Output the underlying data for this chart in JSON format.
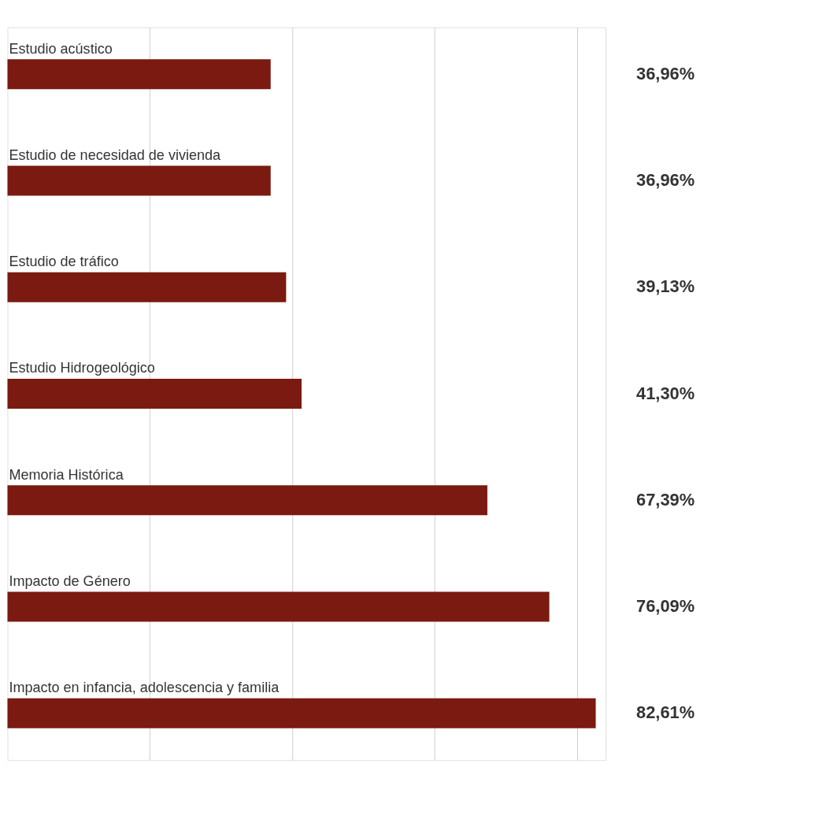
{
  "chart_data": {
    "type": "bar",
    "orientation": "horizontal",
    "categories": [
      "Estudio acústico",
      "Estudio de necesidad de vivienda",
      "Estudio de tráfico",
      "Estudio Hidrogeológico",
      "Memoria Histórica",
      "Impacto de Género",
      "Impacto en infancia, adolescencia y familia"
    ],
    "values": [
      36.96,
      36.96,
      39.13,
      41.3,
      67.39,
      76.09,
      82.61
    ],
    "value_labels": [
      "36,96%",
      "36,96%",
      "39,13%",
      "41,30%",
      "67,39%",
      "76,09%",
      "82,61%"
    ],
    "color": "#7b1a10",
    "xlim": [
      0,
      84
    ],
    "xticks": [
      {
        "value": 20,
        "label": null
      },
      {
        "value": 40,
        "label": null
      },
      {
        "value": 60,
        "label": null
      },
      {
        "value": 80,
        "label": null
      }
    ],
    "grid": "x",
    "tick_labels": false
  }
}
